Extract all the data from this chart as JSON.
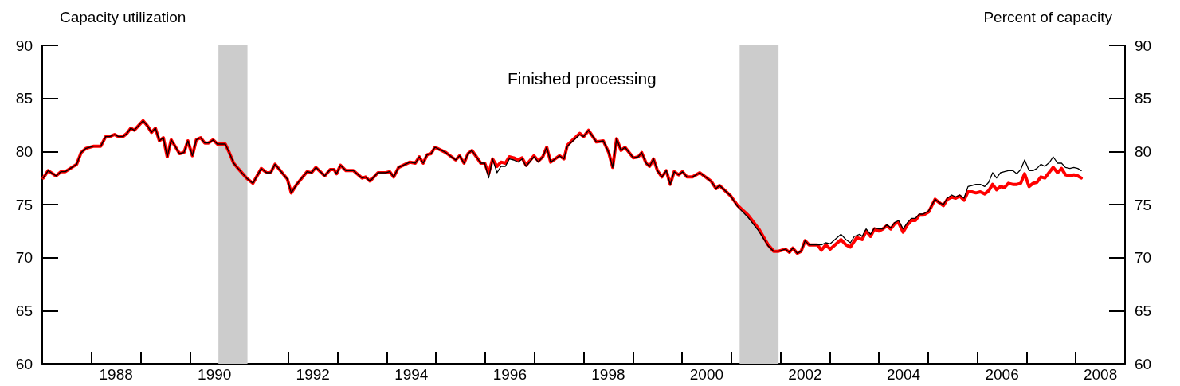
{
  "chart_data": {
    "type": "line",
    "title": "Finished processing",
    "ylabel": "Capacity utilization",
    "y2label": "Percent of capacity",
    "xlim": [
      1987,
      2009
    ],
    "xticks": [
      {
        "value": 1988,
        "label": null
      },
      {
        "value": 1988.5,
        "label": "1988"
      },
      {
        "value": 1989,
        "label": null
      },
      {
        "value": 1990,
        "label": null
      },
      {
        "value": 1990.5,
        "label": "1990"
      },
      {
        "value": 1991,
        "label": null
      },
      {
        "value": 1992,
        "label": null
      },
      {
        "value": 1992.5,
        "label": "1992"
      },
      {
        "value": 1993,
        "label": null
      },
      {
        "value": 1994,
        "label": null
      },
      {
        "value": 1994.5,
        "label": "1994"
      },
      {
        "value": 1995,
        "label": null
      },
      {
        "value": 1996,
        "label": null
      },
      {
        "value": 1996.5,
        "label": "1996"
      },
      {
        "value": 1997,
        "label": null
      },
      {
        "value": 1998,
        "label": null
      },
      {
        "value": 1998.5,
        "label": "1998"
      },
      {
        "value": 1999,
        "label": null
      },
      {
        "value": 2000,
        "label": null
      },
      {
        "value": 2000.5,
        "label": "2000"
      },
      {
        "value": 2001,
        "label": null
      },
      {
        "value": 2002,
        "label": null
      },
      {
        "value": 2002.5,
        "label": "2002"
      },
      {
        "value": 2003,
        "label": null
      },
      {
        "value": 2004,
        "label": null
      },
      {
        "value": 2004.5,
        "label": "2004"
      },
      {
        "value": 2005,
        "label": null
      },
      {
        "value": 2006,
        "label": null
      },
      {
        "value": 2006.5,
        "label": "2006"
      },
      {
        "value": 2007,
        "label": null
      },
      {
        "value": 2008,
        "label": null
      },
      {
        "value": 2008.5,
        "label": "2008"
      }
    ],
    "ylim": [
      60,
      90
    ],
    "yticks": [
      60,
      65,
      70,
      75,
      80,
      85,
      90
    ],
    "y2lim": [
      60,
      90
    ],
    "y2ticks": [
      60,
      65,
      70,
      75,
      80,
      85,
      90
    ],
    "grid": false,
    "marker": "none",
    "line_style": "solid",
    "bands": [
      {
        "axis": "x",
        "from": 1990.58,
        "to": 1991.17,
        "color": "#cccccc"
      },
      {
        "axis": "x",
        "from": 2001.17,
        "to": 2001.96,
        "color": "#cccccc"
      }
    ],
    "series": [
      {
        "color": "#ff0000",
        "x": [
          1987.02,
          1987.12,
          1987.28,
          1987.38,
          1987.47,
          1987.7,
          1987.79,
          1987.89,
          1988.05,
          1988.19,
          1988.29,
          1988.37,
          1988.47,
          1988.55,
          1988.64,
          1988.72,
          1988.8,
          1988.87,
          1989.05,
          1989.14,
          1989.22,
          1989.3,
          1989.38,
          1989.46,
          1989.54,
          1989.62,
          1989.79,
          1989.88,
          1989.96,
          1990.05,
          1990.13,
          1990.22,
          1990.3,
          1990.38,
          1990.47,
          1990.56,
          1990.72,
          1990.8,
          1990.89,
          1990.98,
          1991.15,
          1991.28,
          1991.45,
          1991.56,
          1991.64,
          1991.73,
          1991.98,
          1992.06,
          1992.17,
          1992.38,
          1992.47,
          1992.56,
          1992.74,
          1992.85,
          1992.93,
          1992.98,
          1993.06,
          1993.17,
          1993.32,
          1993.5,
          1993.57,
          1993.66,
          1993.82,
          1993.98,
          1994.06,
          1994.14,
          1994.24,
          1994.47,
          1994.58,
          1994.66,
          1994.74,
          1994.82,
          1994.9,
          1994.98,
          1995.2,
          1995.4,
          1995.48,
          1995.57,
          1995.65,
          1995.73,
          1995.91,
          1995.99,
          1996.07,
          1996.15,
          1996.24,
          1996.32,
          1996.41,
          1996.49,
          1996.58,
          1996.67,
          1996.75,
          1996.83,
          1996.99,
          1997.08,
          1997.17,
          1997.25,
          1997.33,
          1997.51,
          1997.6,
          1997.67,
          1997.76,
          1997.92,
          1998,
          1998.1,
          1998.26,
          1998.4,
          1998.51,
          1998.59,
          1998.67,
          1998.76,
          1998.84,
          1999.01,
          1999.11,
          1999.18,
          1999.27,
          1999.34,
          1999.42,
          1999.5,
          1999.59,
          1999.68,
          1999.76,
          1999.84,
          1999.93,
          2000.01,
          2000.1,
          2000.21,
          2000.36,
          2000.59,
          2000.69,
          2000.76,
          2000.99,
          2001.13,
          2001.34,
          2001.56,
          2001.75,
          2001.86,
          2001.96,
          2002.1,
          2002.18,
          2002.25,
          2002.34,
          2002.42,
          2002.5,
          2002.58,
          2002.75,
          2002.83,
          2002.92,
          2003.01,
          2003.23,
          2003.33,
          2003.42,
          2003.55,
          2003.66,
          2003.74,
          2003.83,
          2003.91,
          2004,
          2004.08,
          2004.16,
          2004.24,
          2004.32,
          2004.4,
          2004.49,
          2004.58,
          2004.66,
          2004.74,
          2004.82,
          2004.9,
          2005.01,
          2005.14,
          2005.22,
          2005.31,
          2005.39,
          2005.48,
          2005.56,
          2005.64,
          2005.73,
          2005.81,
          2005.89,
          2005.97,
          2006.06,
          2006.15,
          2006.23,
          2006.31,
          2006.39,
          2006.47,
          2006.55,
          2006.63,
          2006.72,
          2006.8,
          2006.88,
          2006.96,
          2007.05,
          2007.13,
          2007.21,
          2007.29,
          2007.37,
          2007.47,
          2007.54,
          2007.63,
          2007.71,
          2007.79,
          2007.88,
          2007.96,
          2008.04,
          2008.11
        ],
        "values": [
          77.5,
          78.2,
          77.7,
          78.1,
          78.1,
          78.8,
          79.9,
          80.3,
          80.5,
          80.5,
          81.4,
          81.4,
          81.6,
          81.4,
          81.4,
          81.7,
          82.2,
          82.0,
          82.9,
          82.4,
          81.8,
          82.2,
          81.0,
          81.3,
          79.5,
          81.1,
          79.8,
          79.9,
          81.0,
          79.6,
          81.1,
          81.3,
          80.8,
          80.8,
          81.1,
          80.7,
          80.7,
          79.9,
          78.9,
          78.4,
          77.5,
          77.0,
          78.4,
          78.0,
          78.0,
          78.8,
          77.4,
          76.1,
          76.9,
          78.1,
          78.0,
          78.5,
          77.7,
          78.3,
          78.3,
          77.9,
          78.7,
          78.2,
          78.2,
          77.5,
          77.6,
          77.2,
          78.0,
          78.0,
          78.1,
          77.6,
          78.5,
          79.0,
          78.9,
          79.5,
          78.9,
          79.7,
          79.8,
          80.4,
          79.9,
          79.2,
          79.6,
          78.9,
          79.8,
          80.1,
          78.9,
          78.9,
          77.9,
          79.3,
          78.6,
          79.0,
          78.9,
          79.5,
          79.4,
          79.2,
          79.4,
          78.7,
          79.6,
          79.1,
          79.5,
          80.4,
          79.0,
          79.6,
          79.3,
          80.6,
          81.0,
          81.7,
          81.4,
          82.0,
          80.9,
          81.0,
          79.9,
          78.5,
          81.2,
          80.1,
          80.4,
          79.4,
          79.5,
          79.9,
          78.9,
          78.6,
          79.3,
          78.2,
          77.6,
          78.2,
          76.9,
          78.1,
          77.8,
          78.1,
          77.6,
          77.6,
          78.0,
          77.2,
          76.5,
          76.8,
          75.8,
          74.9,
          74.0,
          72.7,
          71.2,
          70.6,
          70.6,
          70.8,
          70.5,
          70.9,
          70.4,
          70.6,
          71.6,
          71.2,
          71.2,
          70.7,
          71.2,
          70.8,
          71.7,
          71.2,
          71.0,
          71.9,
          71.7,
          72.5,
          72.0,
          72.7,
          72.5,
          72.7,
          73.0,
          72.7,
          73.2,
          73.3,
          72.4,
          73.1,
          73.5,
          73.5,
          74.0,
          74.0,
          74.3,
          75.5,
          75.2,
          74.9,
          75.5,
          75.7,
          75.6,
          75.8,
          75.4,
          76.2,
          76.2,
          76.1,
          76.2,
          76.0,
          76.3,
          76.9,
          76.4,
          76.7,
          76.6,
          77.0,
          76.9,
          76.9,
          77.0,
          77.9,
          76.7,
          77.0,
          77.1,
          77.6,
          77.5,
          78.1,
          78.5,
          78.0,
          78.4,
          77.8,
          77.7,
          77.8,
          77.7,
          77.5
        ]
      },
      {
        "color": "#000000",
        "x": [
          1987.02,
          1987.12,
          1987.28,
          1987.38,
          1987.47,
          1987.7,
          1987.79,
          1987.89,
          1988.05,
          1988.19,
          1988.29,
          1988.37,
          1988.47,
          1988.55,
          1988.64,
          1988.72,
          1988.8,
          1988.87,
          1989.05,
          1989.14,
          1989.22,
          1989.3,
          1989.38,
          1989.46,
          1989.54,
          1989.62,
          1989.79,
          1989.88,
          1989.96,
          1990.05,
          1990.13,
          1990.22,
          1990.3,
          1990.38,
          1990.47,
          1990.56,
          1990.72,
          1990.8,
          1990.89,
          1990.98,
          1991.15,
          1991.28,
          1991.45,
          1991.56,
          1991.64,
          1991.73,
          1991.98,
          1992.06,
          1992.17,
          1992.38,
          1992.47,
          1992.56,
          1992.74,
          1992.85,
          1992.93,
          1992.98,
          1993.06,
          1993.17,
          1993.32,
          1993.5,
          1993.57,
          1993.66,
          1993.82,
          1993.98,
          1994.06,
          1994.14,
          1994.24,
          1994.47,
          1994.58,
          1994.66,
          1994.74,
          1994.82,
          1994.9,
          1994.98,
          1995.2,
          1995.4,
          1995.48,
          1995.57,
          1995.65,
          1995.73,
          1995.91,
          1995.99,
          1996.07,
          1996.15,
          1996.24,
          1996.32,
          1996.41,
          1996.49,
          1996.58,
          1996.67,
          1996.75,
          1996.83,
          1996.99,
          1997.08,
          1997.17,
          1997.25,
          1997.33,
          1997.51,
          1997.6,
          1997.67,
          1997.76,
          1997.92,
          1998,
          1998.1,
          1998.26,
          1998.4,
          1998.51,
          1998.59,
          1998.67,
          1998.76,
          1998.84,
          1999.01,
          1999.11,
          1999.18,
          1999.27,
          1999.34,
          1999.42,
          1999.5,
          1999.59,
          1999.68,
          1999.76,
          1999.84,
          1999.93,
          2000.01,
          2000.1,
          2000.21,
          2000.36,
          2000.59,
          2000.69,
          2000.76,
          2000.99,
          2001.13,
          2001.34,
          2001.56,
          2001.75,
          2001.86,
          2001.96,
          2002.1,
          2002.18,
          2002.25,
          2002.34,
          2002.42,
          2002.5,
          2002.58,
          2002.75,
          2002.83,
          2002.92,
          2003.01,
          2003.23,
          2003.33,
          2003.42,
          2003.5,
          2003.61,
          2003.66,
          2003.74,
          2003.83,
          2003.91,
          2004,
          2004.08,
          2004.16,
          2004.24,
          2004.32,
          2004.4,
          2004.49,
          2004.58,
          2004.66,
          2004.74,
          2004.82,
          2004.9,
          2005.01,
          2005.14,
          2005.22,
          2005.31,
          2005.39,
          2005.48,
          2005.56,
          2005.64,
          2005.73,
          2005.81,
          2005.89,
          2005.97,
          2006.06,
          2006.15,
          2006.23,
          2006.31,
          2006.39,
          2006.47,
          2006.55,
          2006.63,
          2006.72,
          2006.8,
          2006.88,
          2006.96,
          2007.05,
          2007.13,
          2007.21,
          2007.29,
          2007.37,
          2007.47,
          2007.54,
          2007.63,
          2007.71,
          2007.79,
          2007.88,
          2007.96,
          2008.04,
          2008.11
        ],
        "values": [
          77.5,
          78.2,
          77.7,
          78.1,
          78.1,
          78.8,
          79.9,
          80.3,
          80.5,
          80.5,
          81.4,
          81.4,
          81.6,
          81.4,
          81.4,
          81.7,
          82.2,
          82.0,
          82.9,
          82.4,
          81.8,
          82.2,
          81.0,
          81.3,
          79.5,
          81.1,
          79.8,
          79.9,
          81.0,
          79.6,
          81.1,
          81.3,
          80.8,
          80.8,
          81.1,
          80.7,
          80.7,
          79.9,
          78.9,
          78.4,
          77.5,
          77.0,
          78.4,
          78.0,
          78.0,
          78.8,
          77.4,
          76.1,
          76.9,
          78.1,
          78.0,
          78.5,
          77.7,
          78.3,
          78.3,
          77.9,
          78.7,
          78.2,
          78.2,
          77.5,
          77.6,
          77.2,
          78.0,
          78.0,
          78.1,
          77.6,
          78.5,
          79.0,
          78.9,
          79.5,
          78.9,
          79.7,
          79.8,
          80.4,
          79.9,
          79.2,
          79.6,
          78.9,
          79.8,
          80.1,
          78.9,
          78.9,
          77.5,
          79.3,
          78.0,
          78.6,
          78.6,
          79.3,
          79.2,
          79.0,
          79.3,
          78.6,
          79.5,
          79.0,
          79.5,
          80.4,
          79.0,
          79.6,
          79.3,
          80.5,
          80.9,
          81.6,
          81.4,
          82.0,
          80.9,
          81.0,
          79.9,
          78.5,
          81.2,
          80.1,
          80.4,
          79.4,
          79.5,
          79.9,
          78.9,
          78.6,
          79.3,
          78.2,
          77.6,
          78.2,
          76.9,
          78.1,
          77.8,
          78.1,
          77.6,
          77.6,
          78.0,
          77.2,
          76.5,
          76.8,
          75.8,
          74.8,
          73.8,
          72.5,
          71.1,
          70.6,
          70.6,
          70.8,
          70.5,
          70.9,
          70.4,
          70.6,
          71.6,
          71.2,
          71.2,
          71.2,
          71.4,
          71.3,
          72.2,
          71.7,
          71.4,
          72.0,
          72.2,
          72.0,
          72.7,
          72.2,
          72.8,
          72.7,
          72.7,
          73.1,
          72.8,
          73.3,
          73.5,
          72.7,
          73.3,
          73.7,
          73.7,
          74.1,
          74.1,
          74.4,
          75.5,
          75.2,
          75.0,
          75.6,
          75.9,
          75.7,
          75.9,
          75.6,
          76.7,
          76.8,
          76.9,
          76.9,
          76.7,
          77.1,
          78.0,
          77.5,
          78.0,
          78.1,
          78.2,
          78.2,
          77.9,
          78.3,
          79.2,
          78.2,
          78.2,
          78.4,
          78.8,
          78.6,
          79.0,
          79.5,
          78.9,
          78.9,
          78.5,
          78.4,
          78.5,
          78.4,
          78.2
        ]
      }
    ]
  }
}
